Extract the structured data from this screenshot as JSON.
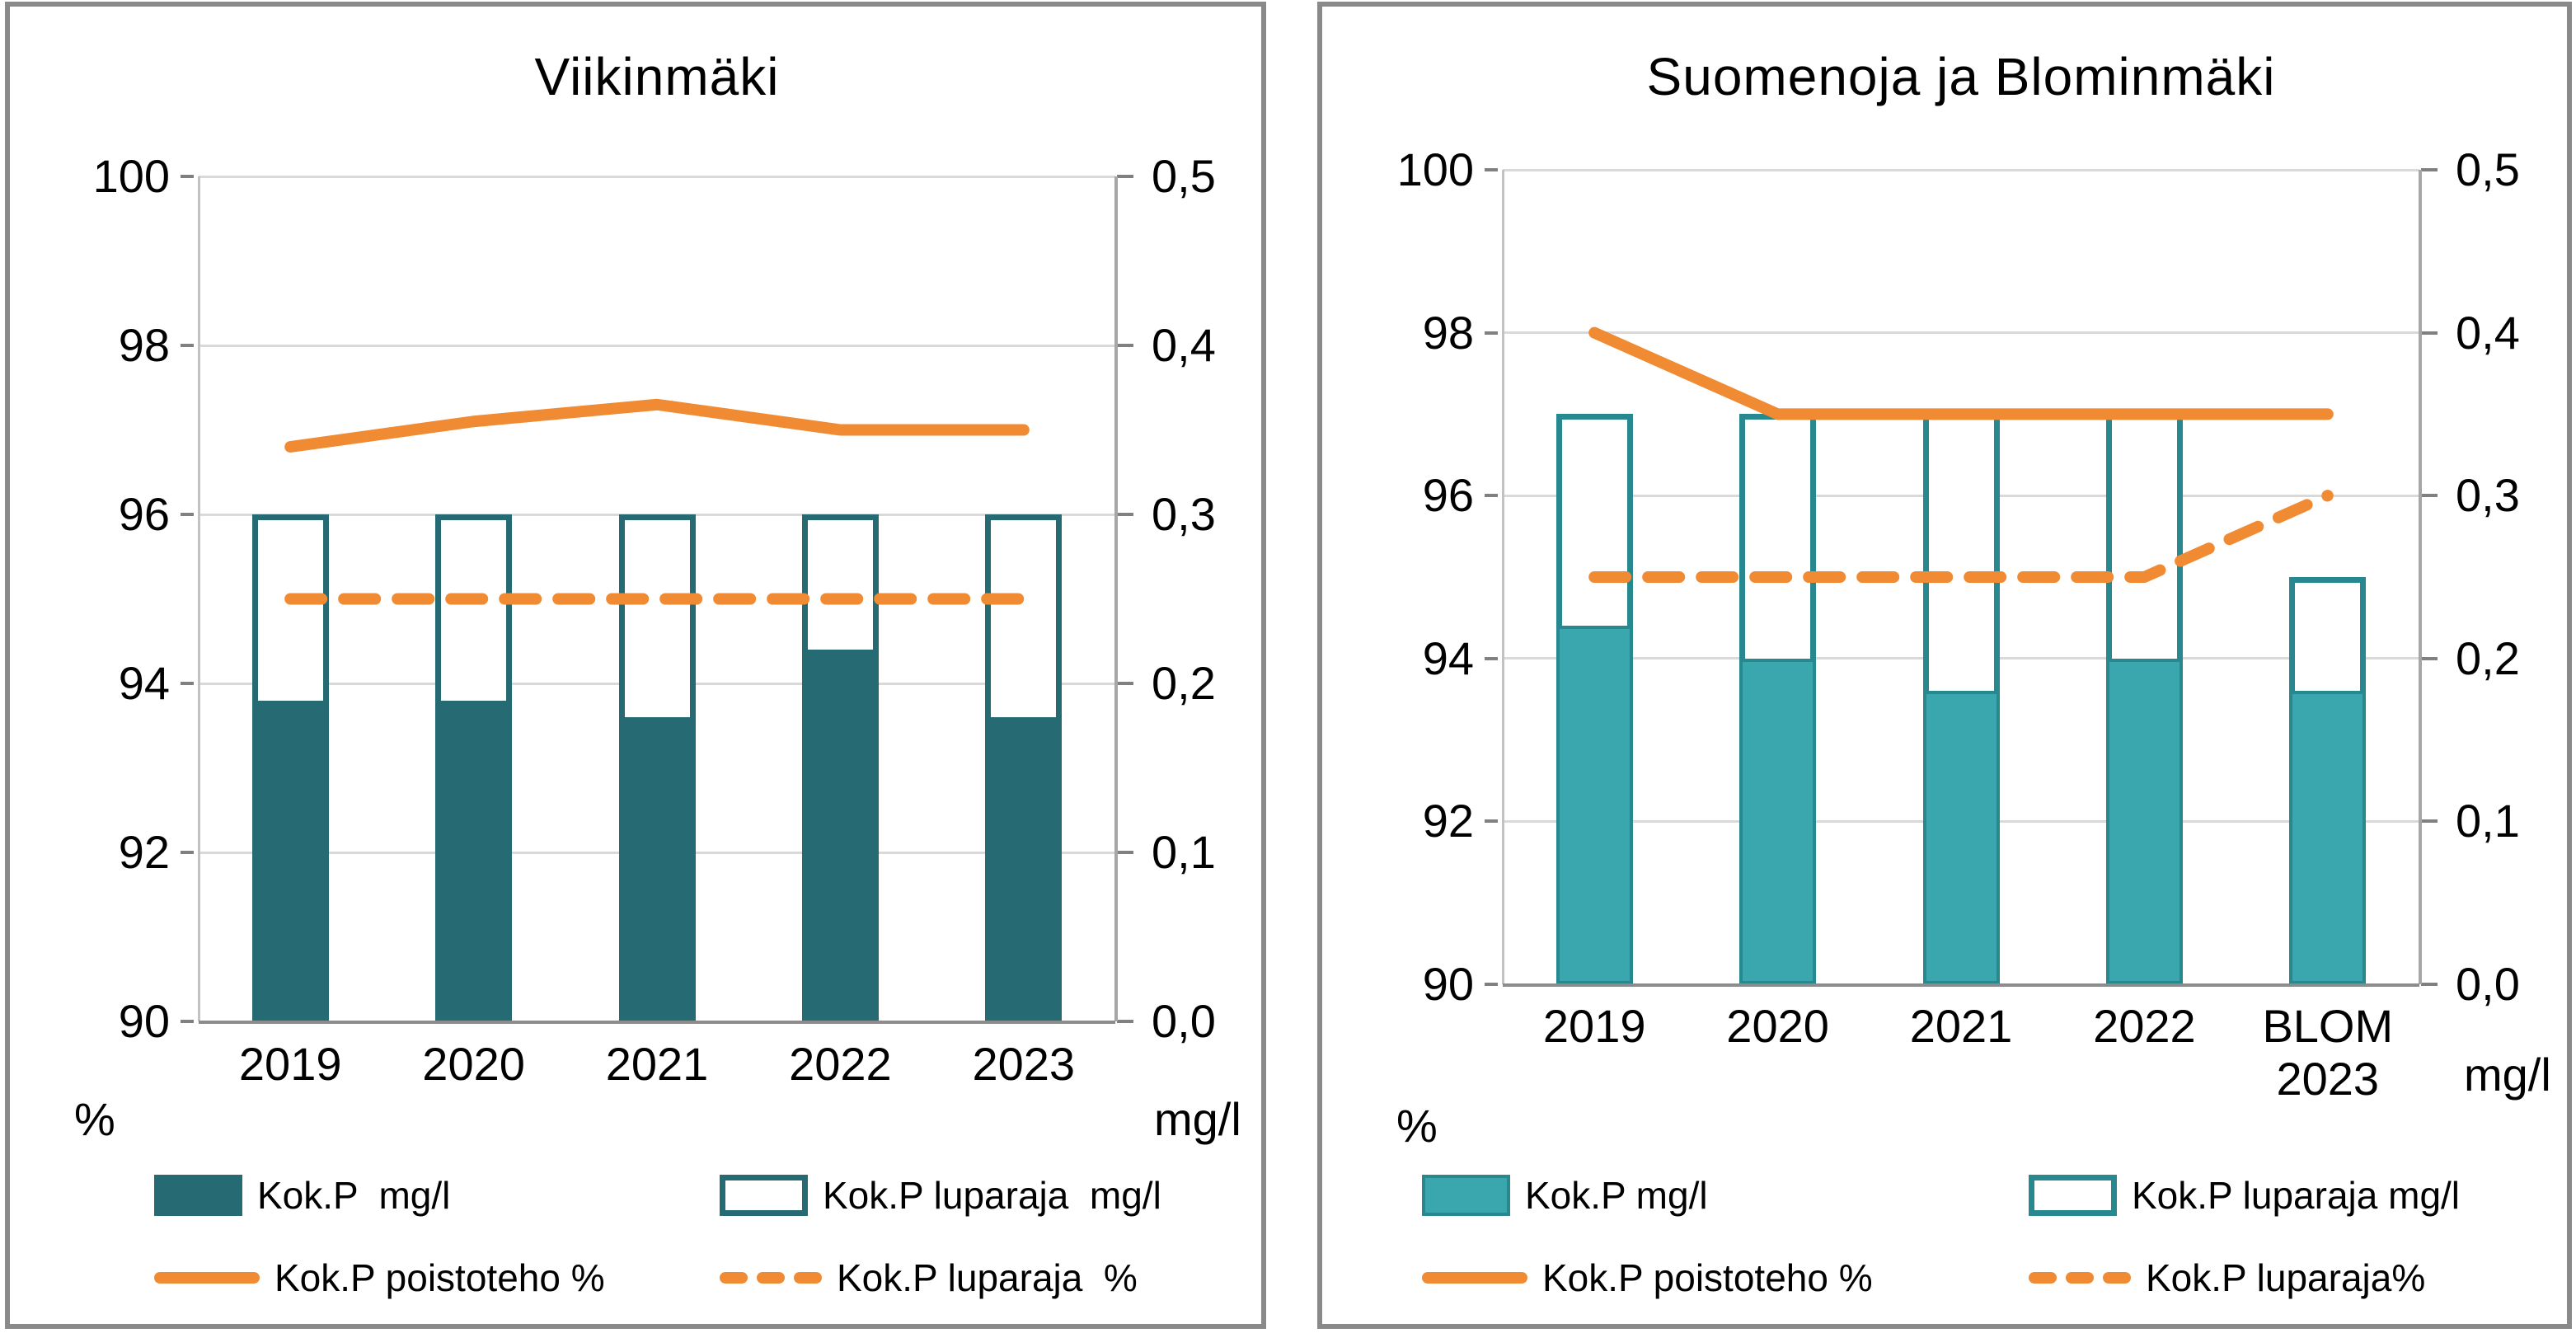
{
  "page": {
    "background": "#ffffff",
    "panel_border_color": "#8a8a8a"
  },
  "colors": {
    "orange": "#F08B33",
    "gridline": "#d9d9d9",
    "axis_gray": "#8c8c8c",
    "text": "#000000"
  },
  "chart_data": [
    {
      "type": "bar+line dual-axis",
      "title": "Viikinmäki",
      "categories": [
        "2019",
        "2020",
        "2021",
        "2022",
        "2023"
      ],
      "left_axis": {
        "label": "%",
        "min": 90,
        "max": 100,
        "tick_values": [
          100,
          98,
          96,
          94,
          92,
          90
        ],
        "tick_labels": [
          "100",
          "98",
          "96",
          "94",
          "92",
          "90"
        ]
      },
      "right_axis": {
        "label": "mg/l",
        "min": 0.0,
        "max": 0.5,
        "tick_values": [
          0.5,
          0.4,
          0.3,
          0.2,
          0.1,
          0.0
        ],
        "tick_labels": [
          "0,5",
          "0,4",
          "0,3",
          "0,2",
          "0,1",
          "0,0"
        ]
      },
      "colors": {
        "bar_fill": "#266B74",
        "bar_stroke": "#266B74"
      },
      "grid": "horizontal",
      "legend_position": "bottom",
      "series": [
        {
          "name": "Kok.P  mg/l",
          "kind": "bar-filled",
          "axis": "right",
          "values": [
            0.19,
            0.19,
            0.18,
            0.22,
            0.18
          ]
        },
        {
          "name": "Kok.P luparaja  mg/l",
          "kind": "bar-outline",
          "axis": "right",
          "values": [
            0.3,
            0.3,
            0.3,
            0.3,
            0.3
          ]
        },
        {
          "name": "Kok.P poistoteho %",
          "kind": "line-solid",
          "axis": "left",
          "values": [
            96.8,
            97.1,
            97.3,
            97.0,
            97.0
          ]
        },
        {
          "name": "Kok.P luparaja  %",
          "kind": "line-dashed",
          "axis": "left",
          "values": [
            95,
            95,
            95,
            95,
            95
          ]
        }
      ]
    },
    {
      "type": "bar+line dual-axis",
      "title": "Suomenoja ja Blominmäki",
      "categories": [
        "2019",
        "2020",
        "2021",
        "2022",
        "BLOM\n2023"
      ],
      "left_axis": {
        "label": "%",
        "min": 90,
        "max": 100,
        "tick_values": [
          100,
          98,
          96,
          94,
          92,
          90
        ],
        "tick_labels": [
          "100",
          "98",
          "96",
          "94",
          "92",
          "90"
        ]
      },
      "right_axis": {
        "label": "mg/l",
        "min": 0.0,
        "max": 0.5,
        "tick_values": [
          0.5,
          0.4,
          0.3,
          0.2,
          0.1,
          0.0
        ],
        "tick_labels": [
          "0,5",
          "0,4",
          "0,3",
          "0,2",
          "0,1",
          "0,0"
        ]
      },
      "colors": {
        "bar_fill": "#3AA6AD",
        "bar_stroke": "#27898F"
      },
      "grid": "horizontal",
      "legend_position": "bottom",
      "series": [
        {
          "name": "Kok.P mg/l",
          "kind": "bar-filled",
          "axis": "right",
          "values": [
            0.22,
            0.2,
            0.18,
            0.2,
            0.18
          ]
        },
        {
          "name": "Kok.P luparaja mg/l",
          "kind": "bar-outline",
          "axis": "right",
          "values": [
            0.35,
            0.35,
            0.35,
            0.35,
            0.25
          ]
        },
        {
          "name": "Kok.P poistoteho %",
          "kind": "line-solid",
          "axis": "left",
          "values": [
            98.0,
            97.0,
            97.0,
            97.0,
            97.0
          ]
        },
        {
          "name": "Kok.P luparaja%",
          "kind": "line-dashed",
          "axis": "left",
          "values": [
            95,
            95,
            95,
            95,
            96
          ]
        }
      ]
    }
  ]
}
